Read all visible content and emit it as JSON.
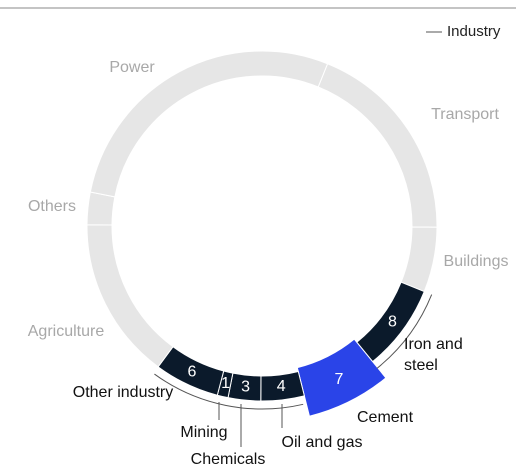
{
  "chart_data": {
    "type": "donut",
    "categories": [
      "Transport",
      "Buildings",
      "Iron and steel",
      "Cement",
      "Oil and gas",
      "Chemicals",
      "Mining",
      "Other industry",
      "Agriculture",
      "Others",
      "Power"
    ],
    "values": [
      19,
      6,
      8,
      7,
      4,
      3,
      1,
      6,
      15,
      3,
      28
    ],
    "colors": [
      "#e6e6e6",
      "#e6e6e6",
      "#0b1a2b",
      "#2a44e8",
      "#0b1a2b",
      "#0b1a2b",
      "#0b1a2b",
      "#0b1a2b",
      "#e6e6e6",
      "#e6e6e6",
      "#e6e6e6"
    ],
    "industry": [
      false,
      false,
      true,
      true,
      true,
      true,
      true,
      true,
      false,
      false,
      false
    ],
    "legend": {
      "label": "Industry",
      "position": "top-right"
    }
  }
}
